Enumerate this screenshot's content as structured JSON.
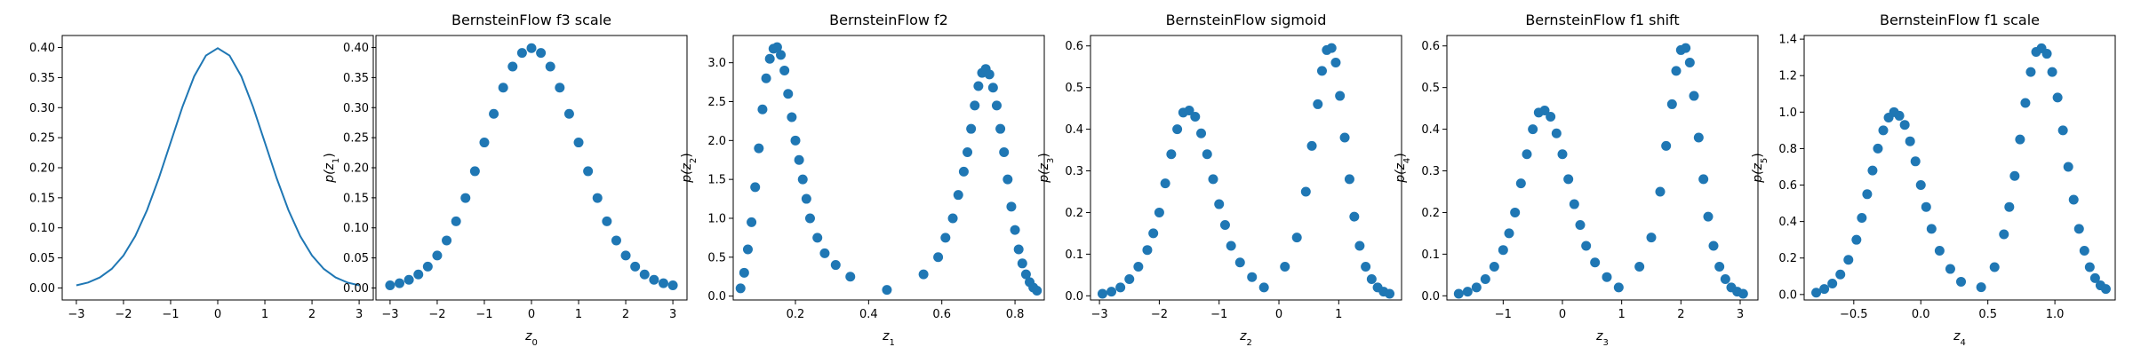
{
  "chart_data": [
    {
      "type": "line",
      "title": "",
      "xlabel": "",
      "ylabel": "",
      "xlim": [
        -3.3,
        3.3
      ],
      "ylim": [
        -0.02,
        0.42
      ],
      "xticks": [
        -3,
        -2,
        -1,
        0,
        1,
        2,
        3
      ],
      "xtick_labels": [
        "−3",
        "−2",
        "−1",
        "0",
        "1",
        "2",
        "3"
      ],
      "yticks": [
        0.0,
        0.05,
        0.1,
        0.15,
        0.2,
        0.25,
        0.3,
        0.35,
        0.4
      ],
      "ytick_labels": [
        "0.00",
        "0.05",
        "0.10",
        "0.15",
        "0.20",
        "0.25",
        "0.30",
        "0.35",
        "0.40"
      ],
      "series": [
        {
          "color": "#1f77b4",
          "x": [
            -3.0,
            -2.75,
            -2.5,
            -2.25,
            -2.0,
            -1.75,
            -1.5,
            -1.25,
            -1.0,
            -0.75,
            -0.5,
            -0.25,
            0.0,
            0.25,
            0.5,
            0.75,
            1.0,
            1.25,
            1.5,
            1.75,
            2.0,
            2.25,
            2.5,
            2.75,
            3.0
          ],
          "y": [
            0.0044,
            0.0091,
            0.0175,
            0.0317,
            0.054,
            0.0863,
            0.1295,
            0.1826,
            0.242,
            0.3011,
            0.3521,
            0.3867,
            0.3989,
            0.3867,
            0.3521,
            0.3011,
            0.242,
            0.1826,
            0.1295,
            0.0863,
            0.054,
            0.0317,
            0.0175,
            0.0091,
            0.0044
          ]
        }
      ],
      "grid": false
    },
    {
      "type": "scatter",
      "title": "BernsteinFlow f3 scale",
      "xlabel": "z",
      "xlabel_sub": "0",
      "ylabel": "p(z",
      "ylabel_sub": "1",
      "xlim": [
        -3.3,
        3.3
      ],
      "ylim": [
        -0.02,
        0.42
      ],
      "xticks": [
        -3,
        -2,
        -1,
        0,
        1,
        2,
        3
      ],
      "xtick_labels": [
        "−3",
        "−2",
        "−1",
        "0",
        "1",
        "2",
        "3"
      ],
      "yticks": [
        0.0,
        0.05,
        0.1,
        0.15,
        0.2,
        0.25,
        0.3,
        0.35,
        0.4
      ],
      "ytick_labels": [
        "0.00",
        "0.05",
        "0.10",
        "0.15",
        "0.20",
        "0.25",
        "0.30",
        "0.35",
        "0.40"
      ],
      "series": [
        {
          "color": "#1f77b4",
          "x": [
            -3.0,
            -2.8,
            -2.6,
            -2.4,
            -2.2,
            -2.0,
            -1.8,
            -1.6,
            -1.4,
            -1.2,
            -1.0,
            -0.8,
            -0.6,
            -0.4,
            -0.2,
            0.0,
            0.2,
            0.4,
            0.6,
            0.8,
            1.0,
            1.2,
            1.4,
            1.6,
            1.8,
            2.0,
            2.2,
            2.4,
            2.6,
            2.8,
            3.0
          ],
          "y": [
            0.0044,
            0.0079,
            0.0136,
            0.0224,
            0.0355,
            0.054,
            0.079,
            0.1109,
            0.1497,
            0.1942,
            0.242,
            0.2897,
            0.3332,
            0.3683,
            0.391,
            0.3989,
            0.391,
            0.3683,
            0.3332,
            0.2897,
            0.242,
            0.1942,
            0.1497,
            0.1109,
            0.079,
            0.054,
            0.0355,
            0.0224,
            0.0136,
            0.0079,
            0.0044
          ]
        }
      ],
      "grid": false
    },
    {
      "type": "scatter",
      "title": "BernsteinFlow f2",
      "xlabel": "z",
      "xlabel_sub": "1",
      "ylabel": "p(z",
      "ylabel_sub": "2",
      "xlim": [
        0.03,
        0.88
      ],
      "ylim": [
        -0.05,
        3.35
      ],
      "xticks": [
        0.2,
        0.4,
        0.6,
        0.8
      ],
      "xtick_labels": [
        "0.2",
        "0.4",
        "0.6",
        "0.8"
      ],
      "yticks": [
        0.0,
        0.5,
        1.0,
        1.5,
        2.0,
        2.5,
        3.0
      ],
      "ytick_labels": [
        "0.0",
        "0.5",
        "1.0",
        "1.5",
        "2.0",
        "2.5",
        "3.0"
      ],
      "series": [
        {
          "color": "#1f77b4",
          "x": [
            0.05,
            0.06,
            0.07,
            0.08,
            0.09,
            0.1,
            0.11,
            0.12,
            0.13,
            0.14,
            0.15,
            0.16,
            0.17,
            0.18,
            0.19,
            0.2,
            0.21,
            0.22,
            0.23,
            0.24,
            0.26,
            0.28,
            0.31,
            0.35,
            0.45,
            0.55,
            0.59,
            0.61,
            0.63,
            0.645,
            0.66,
            0.67,
            0.68,
            0.69,
            0.7,
            0.71,
            0.72,
            0.73,
            0.74,
            0.75,
            0.76,
            0.77,
            0.78,
            0.79,
            0.8,
            0.81,
            0.82,
            0.83,
            0.84,
            0.85,
            0.86
          ],
          "y": [
            0.1,
            0.3,
            0.6,
            0.95,
            1.4,
            1.9,
            2.4,
            2.8,
            3.05,
            3.18,
            3.2,
            3.1,
            2.9,
            2.6,
            2.3,
            2.0,
            1.75,
            1.5,
            1.25,
            1.0,
            0.75,
            0.55,
            0.4,
            0.25,
            0.08,
            0.28,
            0.5,
            0.75,
            1.0,
            1.3,
            1.6,
            1.85,
            2.15,
            2.45,
            2.7,
            2.87,
            2.92,
            2.85,
            2.68,
            2.45,
            2.15,
            1.85,
            1.5,
            1.15,
            0.85,
            0.6,
            0.42,
            0.28,
            0.18,
            0.11,
            0.07
          ]
        }
      ],
      "grid": false
    },
    {
      "type": "scatter",
      "title": "BernsteinFlow sigmoid",
      "xlabel": "z",
      "xlabel_sub": "2",
      "ylabel": "p(z",
      "ylabel_sub": "3",
      "xlim": [
        -3.15,
        2.05
      ],
      "ylim": [
        -0.01,
        0.625
      ],
      "xticks": [
        -3,
        -2,
        -1,
        0,
        1
      ],
      "xtick_labels": [
        "−3",
        "−2",
        "−1",
        "0",
        "1"
      ],
      "yticks": [
        0.0,
        0.1,
        0.2,
        0.3,
        0.4,
        0.5,
        0.6
      ],
      "ytick_labels": [
        "0.0",
        "0.1",
        "0.2",
        "0.3",
        "0.4",
        "0.5",
        "0.6"
      ],
      "series": [
        {
          "color": "#1f77b4",
          "x": [
            -2.95,
            -2.8,
            -2.65,
            -2.5,
            -2.35,
            -2.2,
            -2.1,
            -2.0,
            -1.9,
            -1.8,
            -1.7,
            -1.6,
            -1.5,
            -1.4,
            -1.3,
            -1.2,
            -1.1,
            -1.0,
            -0.9,
            -0.8,
            -0.65,
            -0.45,
            -0.25,
            0.1,
            0.3,
            0.45,
            0.55,
            0.65,
            0.72,
            0.8,
            0.88,
            0.95,
            1.02,
            1.1,
            1.18,
            1.26,
            1.35,
            1.45,
            1.55,
            1.65,
            1.75,
            1.85
          ],
          "y": [
            0.005,
            0.01,
            0.02,
            0.04,
            0.07,
            0.11,
            0.15,
            0.2,
            0.27,
            0.34,
            0.4,
            0.44,
            0.445,
            0.43,
            0.39,
            0.34,
            0.28,
            0.22,
            0.17,
            0.12,
            0.08,
            0.045,
            0.02,
            0.07,
            0.14,
            0.25,
            0.36,
            0.46,
            0.54,
            0.59,
            0.595,
            0.56,
            0.48,
            0.38,
            0.28,
            0.19,
            0.12,
            0.07,
            0.04,
            0.02,
            0.01,
            0.005
          ]
        }
      ],
      "grid": false
    },
    {
      "type": "scatter",
      "title": "BernsteinFlow f1 shift",
      "xlabel": "z",
      "xlabel_sub": "3",
      "ylabel": "p(z",
      "ylabel_sub": "4",
      "xlim": [
        -1.95,
        3.3
      ],
      "ylim": [
        -0.01,
        0.625
      ],
      "xticks": [
        -1,
        0,
        1,
        2,
        3
      ],
      "xtick_labels": [
        "−1",
        "0",
        "1",
        "2",
        "3"
      ],
      "yticks": [
        0.0,
        0.1,
        0.2,
        0.3,
        0.4,
        0.5,
        0.6
      ],
      "ytick_labels": [
        "0.0",
        "0.1",
        "0.2",
        "0.3",
        "0.4",
        "0.5",
        "0.6"
      ],
      "series": [
        {
          "color": "#1f77b4",
          "x": [
            -1.75,
            -1.6,
            -1.45,
            -1.3,
            -1.15,
            -1.0,
            -0.9,
            -0.8,
            -0.7,
            -0.6,
            -0.5,
            -0.4,
            -0.3,
            -0.2,
            -0.1,
            0.0,
            0.1,
            0.2,
            0.3,
            0.4,
            0.55,
            0.75,
            0.95,
            1.3,
            1.5,
            1.65,
            1.75,
            1.85,
            1.92,
            2.0,
            2.08,
            2.15,
            2.22,
            2.3,
            2.38,
            2.46,
            2.55,
            2.65,
            2.75,
            2.85,
            2.95,
            3.05
          ],
          "y": [
            0.005,
            0.01,
            0.02,
            0.04,
            0.07,
            0.11,
            0.15,
            0.2,
            0.27,
            0.34,
            0.4,
            0.44,
            0.445,
            0.43,
            0.39,
            0.34,
            0.28,
            0.22,
            0.17,
            0.12,
            0.08,
            0.045,
            0.02,
            0.07,
            0.14,
            0.25,
            0.36,
            0.46,
            0.54,
            0.59,
            0.595,
            0.56,
            0.48,
            0.38,
            0.28,
            0.19,
            0.12,
            0.07,
            0.04,
            0.02,
            0.01,
            0.005
          ]
        }
      ],
      "grid": false
    },
    {
      "type": "scatter",
      "title": "BernsteinFlow f1 scale",
      "xlabel": "z",
      "xlabel_sub": "4",
      "ylabel": "p(z",
      "ylabel_sub": "5",
      "xlim": [
        -0.87,
        1.45
      ],
      "ylim": [
        -0.03,
        1.42
      ],
      "xticks": [
        -0.5,
        0.0,
        0.5,
        1.0
      ],
      "xtick_labels": [
        "−0.5",
        "0.0",
        "0.5",
        "1.0"
      ],
      "yticks": [
        0.0,
        0.2,
        0.4,
        0.6,
        0.8,
        1.0,
        1.2,
        1.4
      ],
      "ytick_labels": [
        "0.0",
        "0.2",
        "0.4",
        "0.6",
        "0.8",
        "1.0",
        "1.2",
        "1.4"
      ],
      "series": [
        {
          "color": "#1f77b4",
          "x": [
            -0.78,
            -0.72,
            -0.66,
            -0.6,
            -0.54,
            -0.48,
            -0.44,
            -0.4,
            -0.36,
            -0.32,
            -0.28,
            -0.24,
            -0.2,
            -0.16,
            -0.12,
            -0.08,
            -0.04,
            0.0,
            0.04,
            0.08,
            0.14,
            0.22,
            0.3,
            0.45,
            0.55,
            0.62,
            0.66,
            0.7,
            0.74,
            0.78,
            0.82,
            0.86,
            0.9,
            0.94,
            0.98,
            1.02,
            1.06,
            1.1,
            1.14,
            1.18,
            1.22,
            1.26,
            1.3,
            1.34,
            1.38
          ],
          "y": [
            0.01,
            0.03,
            0.06,
            0.11,
            0.19,
            0.3,
            0.42,
            0.55,
            0.68,
            0.8,
            0.9,
            0.97,
            1.0,
            0.98,
            0.93,
            0.84,
            0.73,
            0.6,
            0.48,
            0.36,
            0.24,
            0.14,
            0.07,
            0.04,
            0.15,
            0.33,
            0.48,
            0.65,
            0.85,
            1.05,
            1.22,
            1.33,
            1.35,
            1.32,
            1.22,
            1.08,
            0.9,
            0.7,
            0.52,
            0.36,
            0.24,
            0.15,
            0.09,
            0.05,
            0.03
          ]
        }
      ],
      "grid": false
    }
  ]
}
